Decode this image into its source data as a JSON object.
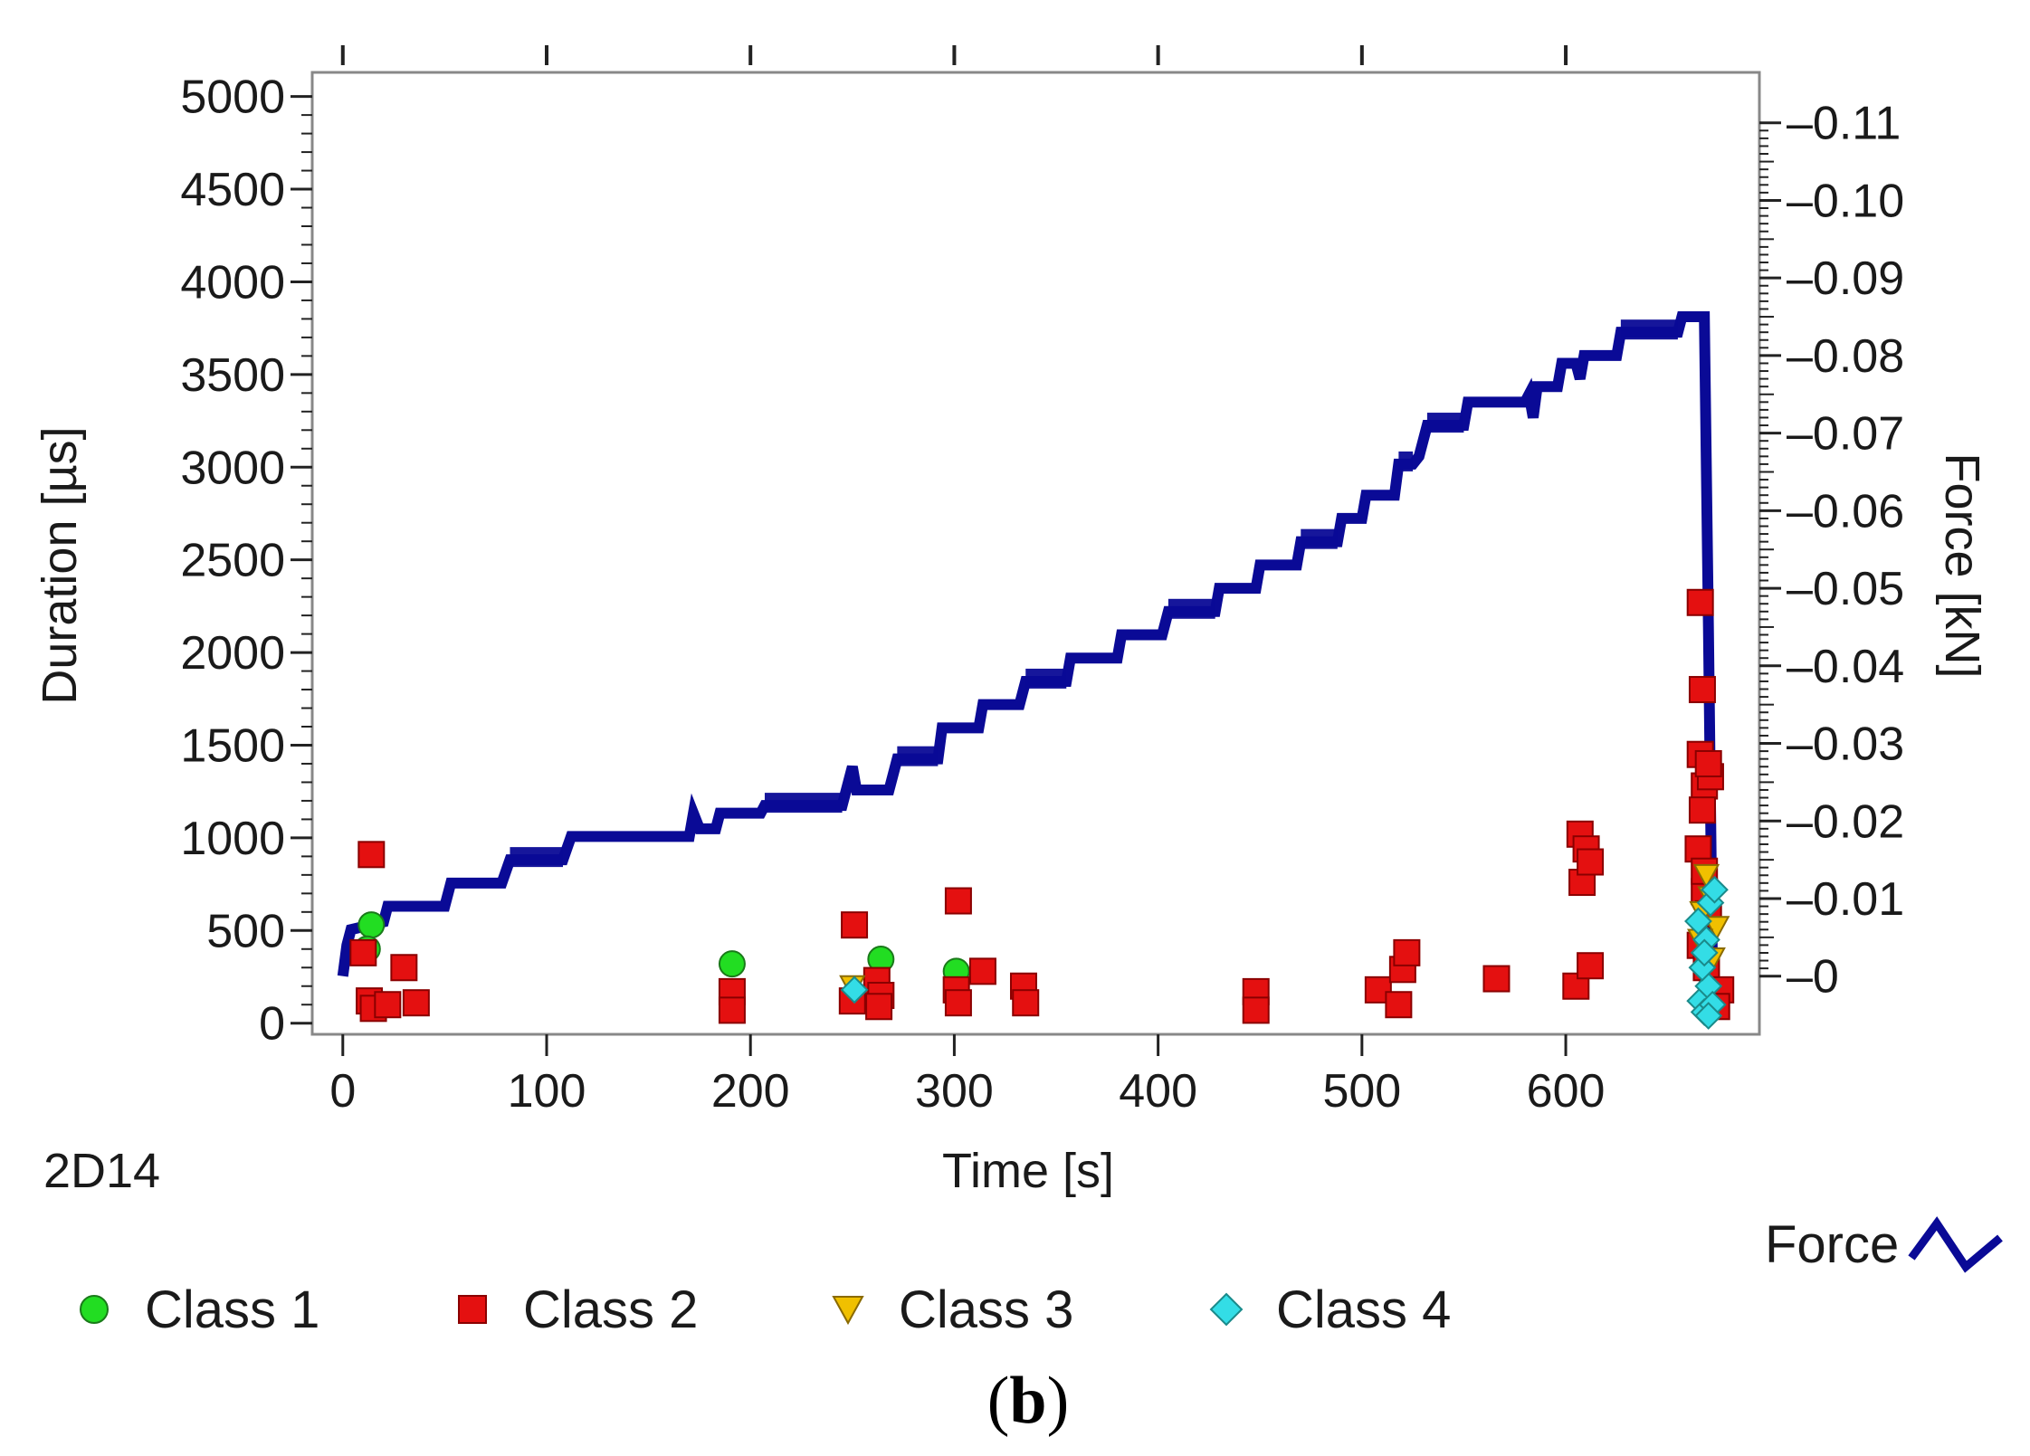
{
  "chart_data": {
    "type": "scatter",
    "specimen_label": "2D14",
    "xlabel": "Time [s]",
    "ylabel_left": "Duration [µs]",
    "ylabel_right": "Force [kN]",
    "xlim": [
      -15,
      695
    ],
    "ylim_left": [
      -60,
      5130
    ],
    "ylim_right": [
      -0.0075,
      0.1165
    ],
    "x_ticks": [
      0,
      100,
      200,
      300,
      400,
      500,
      600
    ],
    "y_left_ticks": [
      0,
      500,
      1000,
      1500,
      2000,
      2500,
      3000,
      3500,
      4000,
      4500,
      5000
    ],
    "y_right_ticks": [
      0,
      0.01,
      0.02,
      0.03,
      0.04,
      0.05,
      0.06,
      0.07,
      0.08,
      0.09,
      0.1,
      0.11
    ],
    "y_right_tick_labels": [
      "0",
      "0.01",
      "0.02",
      "0.03",
      "0.04",
      "0.05",
      "0.06",
      "0.07",
      "0.08",
      "0.09",
      "0.10",
      "0.11"
    ],
    "caption": {
      "open": "(",
      "bold": "b",
      "close": ")"
    },
    "colors": {
      "force": "#0a0a96",
      "class1": "#22dd22",
      "class2": "#e41010",
      "class3": "#f0c000",
      "class4": "#33dde6",
      "frame": "#888888"
    },
    "legend": {
      "class1": "Class 1",
      "class2": "Class 2",
      "class3": "Class 3",
      "class4": "Class 4",
      "force": "Force"
    },
    "series": [
      {
        "name": "Force",
        "axis": "right",
        "kind": "line",
        "points": [
          [
            0,
            0.0
          ],
          [
            2,
            0.004
          ],
          [
            4,
            0.006
          ],
          [
            20,
            0.007
          ],
          [
            22,
            0.009
          ],
          [
            50,
            0.009
          ],
          [
            53,
            0.012
          ],
          [
            78,
            0.012
          ],
          [
            82,
            0.015
          ],
          [
            108,
            0.015
          ],
          [
            112,
            0.018
          ],
          [
            170,
            0.018
          ],
          [
            172,
            0.021
          ],
          [
            175,
            0.019
          ],
          [
            183,
            0.019
          ],
          [
            185,
            0.021
          ],
          [
            205,
            0.021
          ],
          [
            207,
            0.022
          ],
          [
            245,
            0.022
          ],
          [
            247,
            0.024
          ],
          [
            250,
            0.027
          ],
          [
            252,
            0.024
          ],
          [
            268,
            0.024
          ],
          [
            272,
            0.028
          ],
          [
            292,
            0.028
          ],
          [
            294,
            0.032
          ],
          [
            312,
            0.032
          ],
          [
            314,
            0.035
          ],
          [
            332,
            0.035
          ],
          [
            335,
            0.038
          ],
          [
            355,
            0.038
          ],
          [
            357,
            0.041
          ],
          [
            380,
            0.041
          ],
          [
            382,
            0.044
          ],
          [
            402,
            0.044
          ],
          [
            405,
            0.047
          ],
          [
            428,
            0.047
          ],
          [
            430,
            0.05
          ],
          [
            448,
            0.05
          ],
          [
            450,
            0.053
          ],
          [
            468,
            0.053
          ],
          [
            470,
            0.056
          ],
          [
            488,
            0.056
          ],
          [
            490,
            0.059
          ],
          [
            500,
            0.059
          ],
          [
            502,
            0.062
          ],
          [
            516,
            0.062
          ],
          [
            518,
            0.066
          ],
          [
            525,
            0.066
          ],
          [
            528,
            0.067
          ],
          [
            532,
            0.071
          ],
          [
            550,
            0.071
          ],
          [
            552,
            0.074
          ],
          [
            563,
            0.074
          ],
          [
            565,
            0.074
          ],
          [
            580,
            0.074
          ],
          [
            582,
            0.075
          ],
          [
            584,
            0.072
          ],
          [
            586,
            0.076
          ],
          [
            596,
            0.076
          ],
          [
            598,
            0.079
          ],
          [
            605,
            0.079
          ],
          [
            607,
            0.077
          ],
          [
            609,
            0.08
          ],
          [
            625,
            0.08
          ],
          [
            627,
            0.083
          ],
          [
            655,
            0.083
          ],
          [
            657,
            0.085
          ],
          [
            668,
            0.085
          ],
          [
            670,
            0.045
          ],
          [
            672,
            0.0
          ],
          [
            673,
            0.0
          ]
        ]
      },
      {
        "name": "Class 1",
        "axis": "left",
        "kind": "marker",
        "marker": "circle",
        "points": [
          [
            14,
            530
          ],
          [
            191,
            320
          ],
          [
            264,
            345
          ],
          [
            301,
            280
          ],
          [
            12,
            400
          ]
        ]
      },
      {
        "name": "Class 2",
        "axis": "left",
        "kind": "marker",
        "marker": "square",
        "points": [
          [
            14,
            910
          ],
          [
            10,
            380
          ],
          [
            13,
            120
          ],
          [
            15,
            80
          ],
          [
            22,
            100
          ],
          [
            30,
            300
          ],
          [
            36,
            110
          ],
          [
            191,
            170
          ],
          [
            191,
            70
          ],
          [
            251,
            530
          ],
          [
            250,
            120
          ],
          [
            262,
            230
          ],
          [
            264,
            150
          ],
          [
            263,
            90
          ],
          [
            302,
            660
          ],
          [
            301,
            180
          ],
          [
            302,
            110
          ],
          [
            314,
            280
          ],
          [
            334,
            200
          ],
          [
            335,
            110
          ],
          [
            448,
            170
          ],
          [
            448,
            70
          ],
          [
            508,
            180
          ],
          [
            518,
            100
          ],
          [
            520,
            290
          ],
          [
            522,
            380
          ],
          [
            566,
            240
          ],
          [
            605,
            200
          ],
          [
            607,
            1020
          ],
          [
            610,
            940
          ],
          [
            608,
            760
          ],
          [
            612,
            870
          ],
          [
            612,
            310
          ],
          [
            666,
            2270
          ],
          [
            667,
            1800
          ],
          [
            666,
            1450
          ],
          [
            668,
            1280
          ],
          [
            671,
            1330
          ],
          [
            667,
            1150
          ],
          [
            665,
            940
          ],
          [
            668,
            710
          ],
          [
            670,
            590
          ],
          [
            666,
            420
          ],
          [
            669,
            300
          ],
          [
            672,
            160
          ],
          [
            676,
            180
          ],
          [
            674,
            90
          ],
          [
            668,
            820
          ],
          [
            670,
            1400
          ]
        ]
      },
      {
        "name": "Class 3",
        "axis": "left",
        "kind": "marker",
        "marker": "triangle",
        "points": [
          [
            250,
            200
          ],
          [
            667,
            600
          ],
          [
            671,
            680
          ],
          [
            674,
            520
          ],
          [
            669,
            800
          ],
          [
            672,
            350
          ],
          [
            666,
            450
          ]
        ]
      },
      {
        "name": "Class 4",
        "axis": "left",
        "kind": "marker",
        "marker": "diamond",
        "points": [
          [
            251,
            180
          ],
          [
            666,
            120
          ],
          [
            668,
            60
          ],
          [
            670,
            200
          ],
          [
            672,
            100
          ],
          [
            667,
            300
          ],
          [
            669,
            450
          ],
          [
            671,
            650
          ],
          [
            665,
            550
          ],
          [
            673,
            720
          ],
          [
            670,
            40
          ],
          [
            668,
            380
          ]
        ]
      }
    ]
  }
}
